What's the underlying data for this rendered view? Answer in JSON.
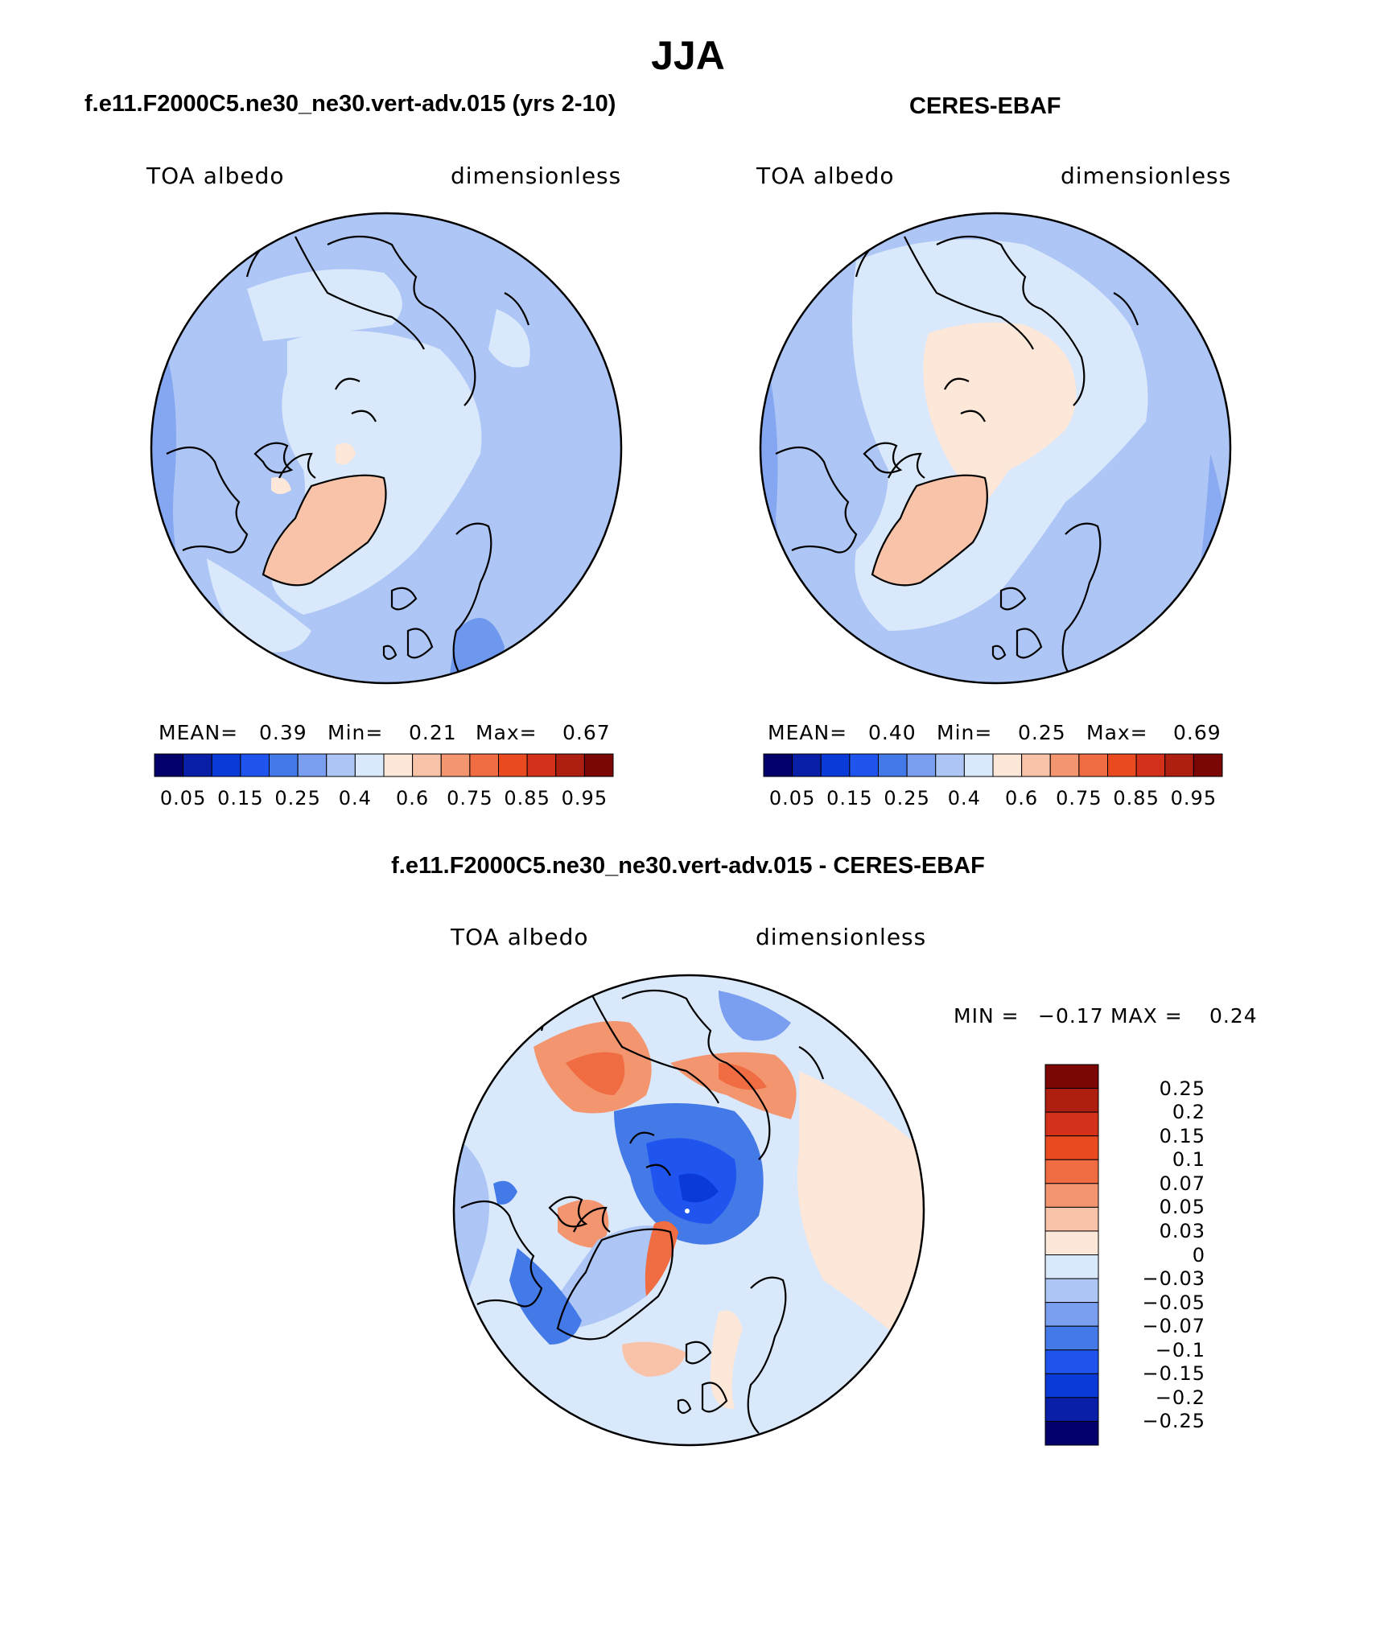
{
  "title": "JJA",
  "panels": [
    {
      "id": "model",
      "title": "f.e11.F2000C5.ne30_ne30.vert-adv.015 (yrs 2-10)",
      "left_label": "TOA albedo",
      "right_label": "dimensionless",
      "stats": {
        "mean_label": "MEAN=",
        "mean": "0.39",
        "min_label": "Min=",
        "min": "0.21",
        "max_label": "Max=",
        "max": "0.67"
      }
    },
    {
      "id": "obs",
      "title": "CERES-EBAF",
      "left_label": "TOA albedo",
      "right_label": "dimensionless",
      "stats": {
        "mean_label": "MEAN=",
        "mean": "0.40",
        "min_label": "Min=",
        "min": "0.25",
        "max_label": "Max=",
        "max": "0.69"
      }
    }
  ],
  "colorbar": {
    "colors": [
      "#03006b",
      "#0a1fa8",
      "#0a3ad8",
      "#1f55ee",
      "#4479e8",
      "#7b9ff0",
      "#adc6f5",
      "#d9e8fb",
      "#fde7d8",
      "#f8c3a8",
      "#f3956f",
      "#f06c42",
      "#ea4a1f",
      "#d4311b",
      "#ae1f12",
      "#7b0606"
    ],
    "labels": [
      "0.05",
      "0.15",
      "0.25",
      "0.4",
      "0.6",
      "0.75",
      "0.85",
      "0.95"
    ]
  },
  "diff": {
    "title": "f.e11.F2000C5.ne30_ne30.vert-adv.015 - CERES-EBAF",
    "left_label": "TOA albedo",
    "right_label": "dimensionless",
    "min_label": "MIN =",
    "min": "−0.17",
    "max_label": "MAX =",
    "max": "0.24",
    "colors": [
      "#7b0606",
      "#ae1f12",
      "#d4311b",
      "#ea4a1f",
      "#f06c42",
      "#f3956f",
      "#f8c3a8",
      "#fde7d8",
      "#d9e8fb",
      "#adc6f5",
      "#7b9ff0",
      "#4479e8",
      "#1f55ee",
      "#0a3ad8",
      "#0a1fa8",
      "#03006b"
    ],
    "labels": [
      "0.25",
      "0.2",
      "0.15",
      "0.1",
      "0.07",
      "0.05",
      "0.03",
      "0",
      "−0.03",
      "−0.05",
      "−0.07",
      "−0.1",
      "−0.15",
      "−0.2",
      "−0.25"
    ]
  }
}
